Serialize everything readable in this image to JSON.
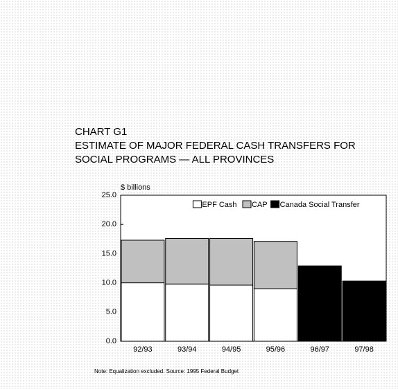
{
  "chart_data": {
    "type": "stacked_bar",
    "title": [
      "CHART G1",
      "ESTIMATE OF MAJOR FEDERAL CASH TRANSFERS FOR",
      "SOCIAL PROGRAMS — ALL PROVINCES"
    ],
    "ylabel": "$ billions",
    "categories": [
      "92/93",
      "93/94",
      "94/95",
      "95/96",
      "96/97",
      "97/98"
    ],
    "series": [
      {
        "name": "EPF Cash",
        "color": "#ffffff",
        "values": [
          10.0,
          9.8,
          9.6,
          9.0,
          null,
          null
        ]
      },
      {
        "name": "CAP",
        "color": "#c0c0c0",
        "values": [
          7.3,
          7.8,
          8.0,
          8.1,
          null,
          null
        ]
      },
      {
        "name": "Canada Social Transfer",
        "color": "#000000",
        "values": [
          null,
          null,
          null,
          null,
          12.9,
          10.3
        ]
      }
    ],
    "ylim": [
      0,
      25
    ],
    "yticks": [
      {
        "value": 0,
        "label": "0.0"
      },
      {
        "value": 5,
        "label": "5.0"
      },
      {
        "value": 10,
        "label": "10.0"
      },
      {
        "value": 15,
        "label": "15.0"
      },
      {
        "value": 20,
        "label": "20.0"
      },
      {
        "value": 25,
        "label": "25.0"
      }
    ],
    "note": "Note:  Equalization excluded.   Source: 1995 Federal  Budget"
  }
}
